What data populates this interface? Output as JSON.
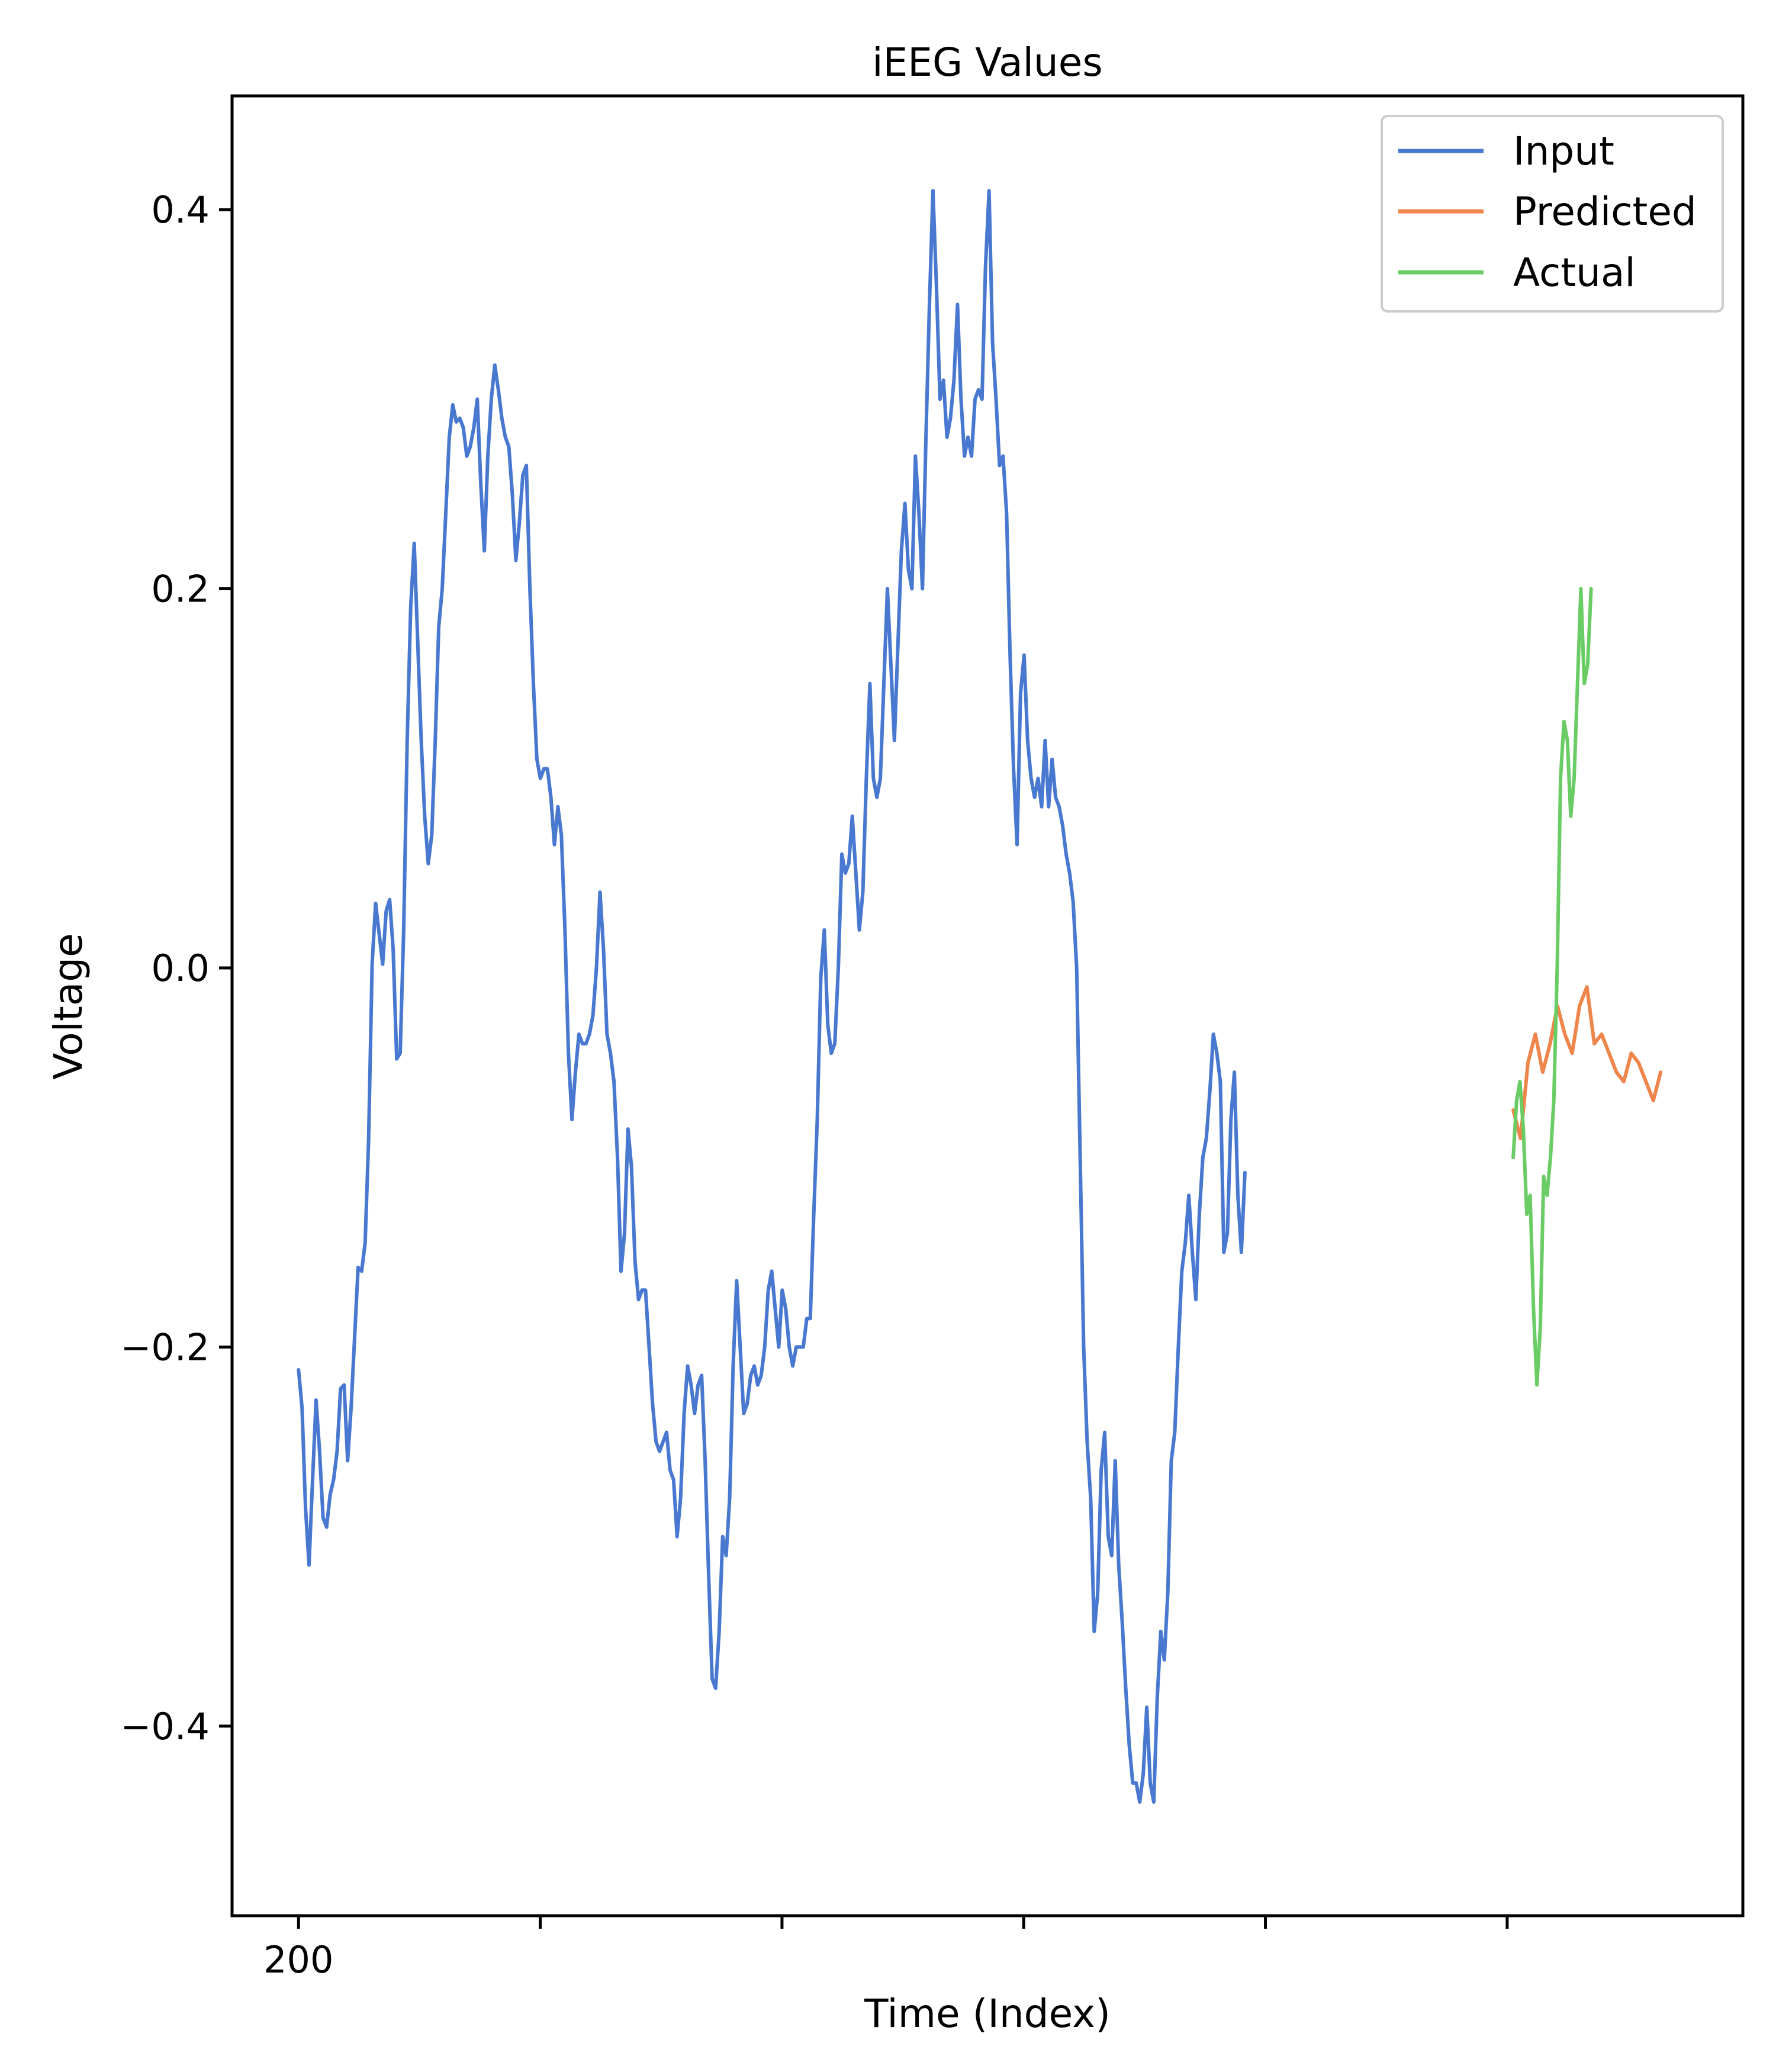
{
  "chart_data": {
    "type": "line",
    "title": "iEEG Values",
    "xlabel": "Time (Index)",
    "ylabel": "Voltage",
    "xlim": [
      194.5,
      319.5
    ],
    "ylim": [
      -0.5,
      0.46
    ],
    "x_ticks": [
      200,
      220,
      240,
      260,
      280,
      300
    ],
    "x_tick_labels": [
      "200",
      "",
      "",
      "",
      "",
      ""
    ],
    "y_ticks": [
      -0.4,
      -0.2,
      0.0,
      0.2,
      0.4
    ],
    "y_tick_labels": [
      "−0.4",
      "−0.2",
      "0.0",
      "0.2",
      "0.4"
    ],
    "grid": false,
    "legend_position": "top-right",
    "series": [
      {
        "name": "Input",
        "color": "#4878d0",
        "x_start": 200,
        "x_step": 0.29,
        "values": [
          -0.212,
          -0.232,
          -0.285,
          -0.315,
          -0.27,
          -0.228,
          -0.255,
          -0.29,
          -0.295,
          -0.278,
          -0.27,
          -0.255,
          -0.222,
          -0.22,
          -0.26,
          -0.232,
          -0.195,
          -0.158,
          -0.16,
          -0.145,
          -0.09,
          0.002,
          0.034,
          0.018,
          0.002,
          0.03,
          0.036,
          0.01,
          -0.048,
          -0.045,
          0.02,
          0.12,
          0.19,
          0.224,
          0.172,
          0.12,
          0.08,
          0.055,
          0.07,
          0.12,
          0.18,
          0.2,
          0.24,
          0.28,
          0.297,
          0.288,
          0.29,
          0.285,
          0.27,
          0.275,
          0.285,
          0.3,
          0.255,
          0.22,
          0.27,
          0.3,
          0.318,
          0.305,
          0.29,
          0.28,
          0.275,
          0.25,
          0.215,
          0.235,
          0.26,
          0.265,
          0.2,
          0.15,
          0.11,
          0.1,
          0.105,
          0.105,
          0.09,
          0.065,
          0.085,
          0.07,
          0.02,
          -0.045,
          -0.08,
          -0.055,
          -0.035,
          -0.04,
          -0.04,
          -0.035,
          -0.025,
          0.0,
          0.04,
          0.01,
          -0.035,
          -0.045,
          -0.06,
          -0.1,
          -0.16,
          -0.14,
          -0.085,
          -0.105,
          -0.155,
          -0.175,
          -0.17,
          -0.17,
          -0.2,
          -0.23,
          -0.25,
          -0.255,
          -0.25,
          -0.245,
          -0.265,
          -0.27,
          -0.3,
          -0.28,
          -0.235,
          -0.21,
          -0.22,
          -0.235,
          -0.22,
          -0.215,
          -0.26,
          -0.32,
          -0.375,
          -0.38,
          -0.35,
          -0.3,
          -0.31,
          -0.28,
          -0.21,
          -0.165,
          -0.2,
          -0.235,
          -0.23,
          -0.215,
          -0.21,
          -0.22,
          -0.215,
          -0.2,
          -0.17,
          -0.16,
          -0.18,
          -0.2,
          -0.17,
          -0.18,
          -0.2,
          -0.21,
          -0.2,
          -0.2,
          -0.2,
          -0.185,
          -0.185,
          -0.13,
          -0.08,
          -0.005,
          0.02,
          -0.03,
          -0.045,
          -0.04,
          0.0,
          0.06,
          0.05,
          0.055,
          0.08,
          0.05,
          0.02,
          0.04,
          0.1,
          0.15,
          0.1,
          0.09,
          0.1,
          0.15,
          0.2,
          0.16,
          0.12,
          0.17,
          0.22,
          0.245,
          0.21,
          0.2,
          0.27,
          0.24,
          0.2,
          0.28,
          0.35,
          0.41,
          0.36,
          0.3,
          0.31,
          0.28,
          0.29,
          0.31,
          0.35,
          0.3,
          0.27,
          0.28,
          0.27,
          0.3,
          0.305,
          0.3,
          0.37,
          0.41,
          0.33,
          0.3,
          0.265,
          0.27,
          0.24,
          0.165,
          0.105,
          0.065,
          0.145,
          0.165,
          0.12,
          0.1,
          0.09,
          0.1,
          0.085,
          0.12,
          0.085,
          0.11,
          0.09,
          0.085,
          0.075,
          0.06,
          0.05,
          0.035,
          0.0,
          -0.1,
          -0.2,
          -0.25,
          -0.28,
          -0.35,
          -0.33,
          -0.265,
          -0.245,
          -0.3,
          -0.31,
          -0.26,
          -0.315,
          -0.345,
          -0.38,
          -0.41,
          -0.43,
          -0.43,
          -0.44,
          -0.425,
          -0.39,
          -0.43,
          -0.44,
          -0.385,
          -0.35,
          -0.365,
          -0.33,
          -0.26,
          -0.245,
          -0.2,
          -0.16,
          -0.145,
          -0.12,
          -0.15,
          -0.175,
          -0.13,
          -0.1,
          -0.09,
          -0.065,
          -0.035,
          -0.045,
          -0.06,
          -0.15,
          -0.14,
          -0.08,
          -0.055,
          -0.12,
          -0.15,
          -0.108
        ]
      },
      {
        "name": "Predicted",
        "color": "#ee854a",
        "x_start": 300.5,
        "x_step": 0.61,
        "values": [
          -0.075,
          -0.09,
          -0.05,
          -0.035,
          -0.055,
          -0.04,
          -0.02,
          -0.035,
          -0.045,
          -0.02,
          -0.01,
          -0.04,
          -0.035,
          -0.045,
          -0.055,
          -0.06,
          -0.045,
          -0.05,
          -0.06,
          -0.07,
          -0.055
        ]
      },
      {
        "name": "Actual",
        "color": "#6acc64",
        "x_start": 300.5,
        "x_step": 0.28,
        "values": [
          -0.1,
          -0.07,
          -0.06,
          -0.085,
          -0.13,
          -0.12,
          -0.18,
          -0.22,
          -0.19,
          -0.11,
          -0.12,
          -0.1,
          -0.07,
          0.0,
          0.1,
          0.13,
          0.12,
          0.08,
          0.1,
          0.15,
          0.2,
          0.15,
          0.16,
          0.2
        ]
      }
    ]
  }
}
